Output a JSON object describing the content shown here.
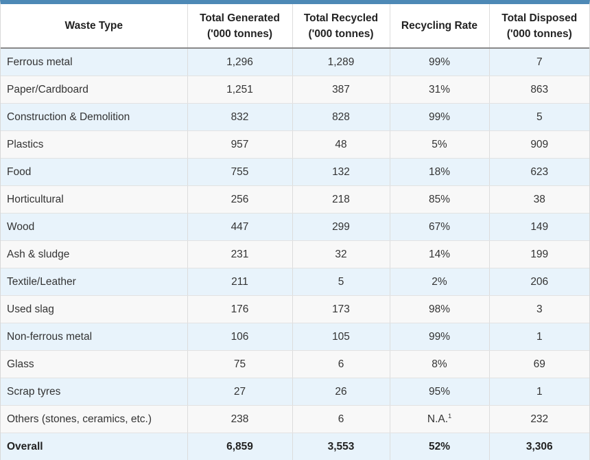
{
  "table": {
    "header": [
      [
        "Waste Type"
      ],
      [
        "Total Generated",
        "('000 tonnes)"
      ],
      [
        "Total Recycled",
        "('000 tonnes)"
      ],
      [
        "Recycling Rate"
      ],
      [
        "Total Disposed",
        "('000 tonnes)"
      ]
    ],
    "rows": [
      [
        "Ferrous metal",
        "1,296",
        "1,289",
        "99%",
        "7"
      ],
      [
        "Paper/Cardboard",
        "1,251",
        "387",
        "31%",
        "863"
      ],
      [
        "Construction & Demolition",
        "832",
        "828",
        "99%",
        "5"
      ],
      [
        "Plastics",
        "957",
        "48",
        "5%",
        "909"
      ],
      [
        "Food",
        "755",
        "132",
        "18%",
        "623"
      ],
      [
        "Horticultural",
        "256",
        "218",
        "85%",
        "38"
      ],
      [
        "Wood",
        "447",
        "299",
        "67%",
        "149"
      ],
      [
        "Ash & sludge",
        "231",
        "32",
        "14%",
        "199"
      ],
      [
        "Textile/Leather",
        "211",
        "5",
        "2%",
        "206"
      ],
      [
        "Used slag",
        "176",
        "173",
        "98%",
        "3"
      ],
      [
        "Non-ferrous metal",
        "106",
        "105",
        "99%",
        "1"
      ],
      [
        "Glass",
        "75",
        "6",
        "8%",
        "69"
      ],
      [
        "Scrap tyres",
        "27",
        "26",
        "95%",
        "1"
      ],
      [
        "Others (stones, ceramics, etc.)",
        "238",
        "6",
        {
          "text": "N.A.",
          "sup": "1"
        },
        "232"
      ],
      [
        "Overall",
        "6,859",
        "3,553",
        "52%",
        "3,306"
      ]
    ]
  }
}
